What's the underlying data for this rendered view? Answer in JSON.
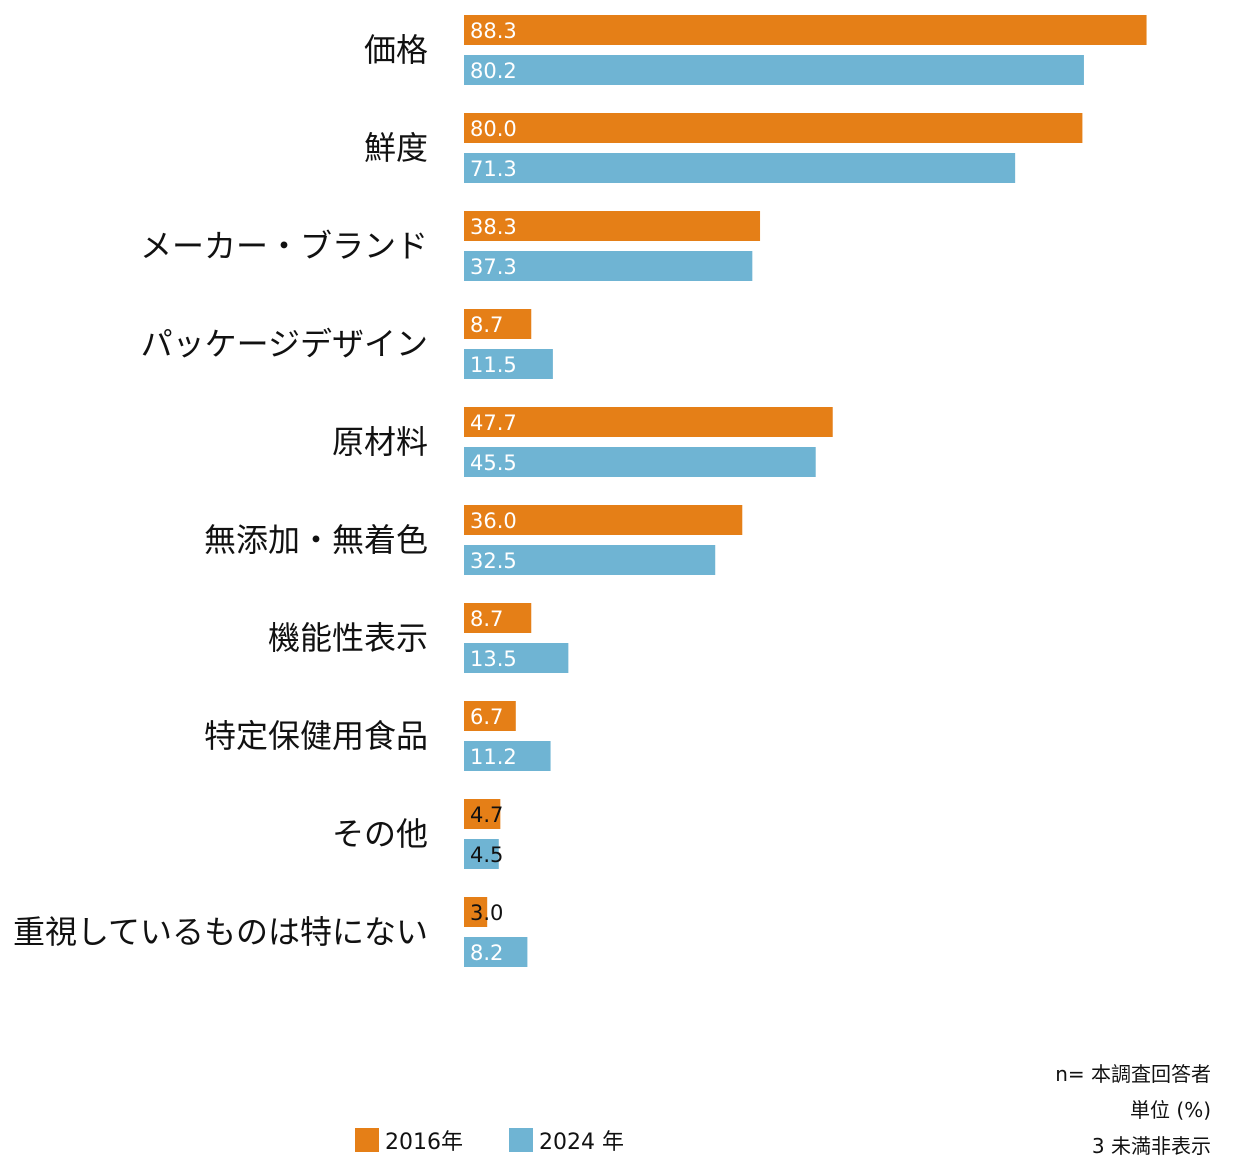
{
  "chart_data": {
    "type": "bar",
    "orientation": "horizontal",
    "categories": [
      "価格",
      "鮮度",
      "メーカー・ブランド",
      "パッケージデザイン",
      "原材料",
      "無添加・無着色",
      "機能性表示",
      "特定保健用食品",
      "その他",
      "重視しているものは特にない"
    ],
    "series": [
      {
        "name": "2016年",
        "color": "#e57f17",
        "values": [
          88.3,
          80.0,
          38.3,
          8.7,
          47.7,
          36.0,
          8.7,
          6.7,
          4.7,
          3.0
        ]
      },
      {
        "name": "2024 年",
        "color": "#6fb4d3",
        "values": [
          80.2,
          71.3,
          37.3,
          11.5,
          45.5,
          32.5,
          13.5,
          11.2,
          4.5,
          8.2
        ]
      }
    ],
    "value_labels": [
      [
        "88.3",
        "80.0",
        "38.3",
        "8.7",
        "47.7",
        "36.0",
        "8.7",
        "6.7",
        "4.7",
        "3.0"
      ],
      [
        "80.2",
        "71.3",
        "37.3",
        "11.5",
        "45.5",
        "32.5",
        "13.5",
        "11.2",
        "4.5",
        "8.2"
      ]
    ],
    "xlim": [
      0,
      100
    ],
    "grid": false,
    "legend_position": "bottom"
  },
  "notes": [
    "n= 本調査回答者",
    "単位 (%)",
    "3 未満非表示"
  ]
}
